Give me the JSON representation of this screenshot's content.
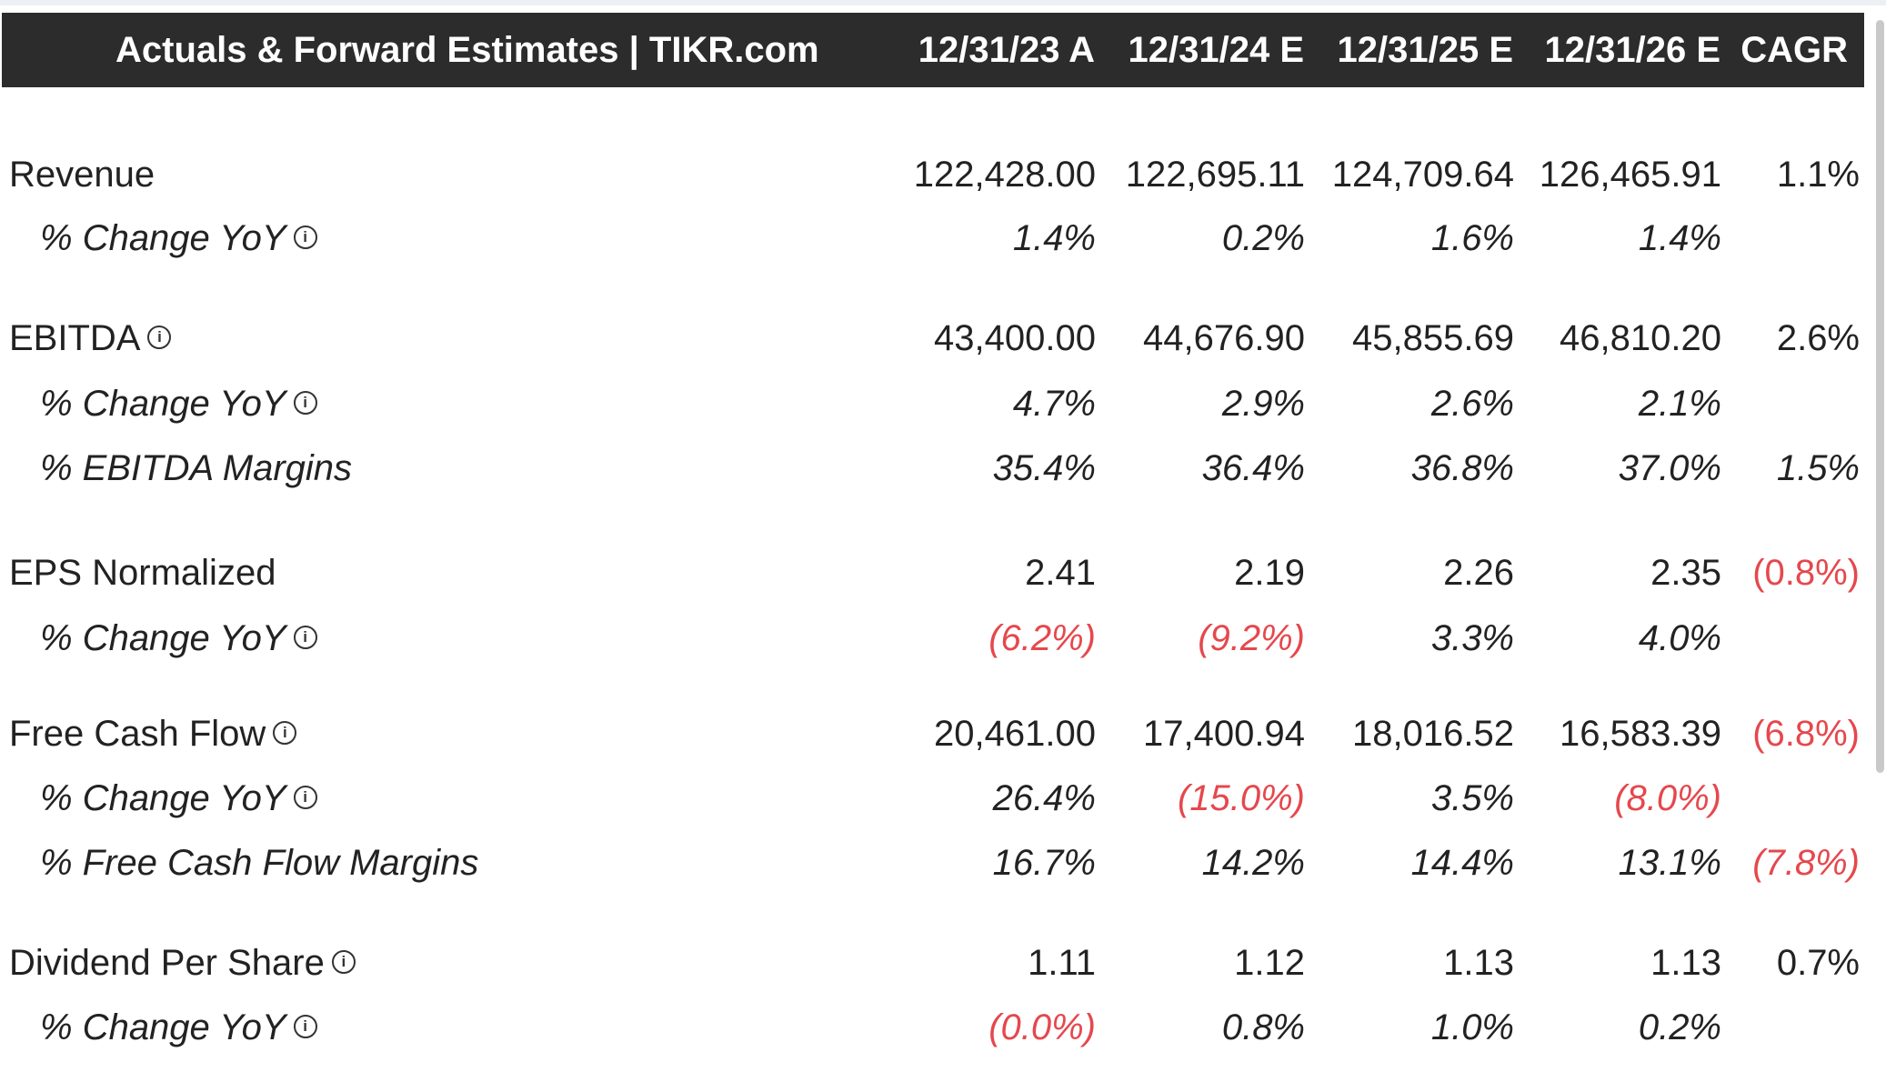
{
  "header": {
    "title": "Actuals & Forward Estimates | TIKR.com",
    "columns": [
      "12/31/23 A",
      "12/31/24 E",
      "12/31/25 E",
      "12/31/26 E",
      "CAGR"
    ]
  },
  "rows": [
    {
      "label": "Revenue",
      "values": [
        "122,428.00",
        "122,695.11",
        "124,709.64",
        "126,465.91",
        "1.1%"
      ]
    },
    {
      "label": "% Change YoY",
      "values": [
        "1.4%",
        "0.2%",
        "1.6%",
        "1.4%",
        ""
      ]
    },
    {
      "label": "EBITDA",
      "values": [
        "43,400.00",
        "44,676.90",
        "45,855.69",
        "46,810.20",
        "2.6%"
      ]
    },
    {
      "label": "% Change YoY",
      "values": [
        "4.7%",
        "2.9%",
        "2.6%",
        "2.1%",
        ""
      ]
    },
    {
      "label": "% EBITDA Margins",
      "values": [
        "35.4%",
        "36.4%",
        "36.8%",
        "37.0%",
        "1.5%"
      ]
    },
    {
      "label": "EPS Normalized",
      "values": [
        "2.41",
        "2.19",
        "2.26",
        "2.35",
        "(0.8%)"
      ]
    },
    {
      "label": "% Change YoY",
      "values": [
        "(6.2%)",
        "(9.2%)",
        "3.3%",
        "4.0%",
        ""
      ]
    },
    {
      "label": "Free Cash Flow",
      "values": [
        "20,461.00",
        "17,400.94",
        "18,016.52",
        "16,583.39",
        "(6.8%)"
      ]
    },
    {
      "label": "% Change YoY",
      "values": [
        "26.4%",
        "(15.0%)",
        "3.5%",
        "(8.0%)",
        ""
      ]
    },
    {
      "label": "% Free Cash Flow Margins",
      "values": [
        "16.7%",
        "14.2%",
        "14.4%",
        "13.1%",
        "(7.8%)"
      ]
    },
    {
      "label": "Dividend Per Share",
      "values": [
        "1.11",
        "1.12",
        "1.13",
        "1.13",
        "0.7%"
      ]
    },
    {
      "label": "% Change YoY",
      "values": [
        "(0.0%)",
        "0.8%",
        "1.0%",
        "0.2%",
        ""
      ]
    }
  ],
  "icons": {
    "info": "info-circle-icon",
    "info_glyph": "i"
  },
  "colors": {
    "header_bg": "#2c2c2c",
    "negative": "#e5484d",
    "text": "#222222"
  }
}
